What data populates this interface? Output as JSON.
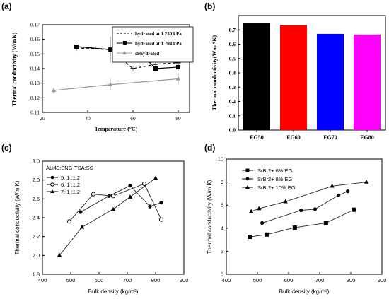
{
  "chart_data": [
    {
      "panel": "(a)",
      "type": "line",
      "ylabel": "Thermal conductivity (W/mK)",
      "xlabel": "Temperature (°C)",
      "xlim": [
        20,
        85
      ],
      "ylim": [
        0.11,
        0.17
      ],
      "x_ticks": [
        "20",
        "40",
        "60",
        "80"
      ],
      "y_ticks": [
        "0.11",
        "0.12",
        "0.13",
        "0.14",
        "0.15",
        "0.16",
        "0.17"
      ],
      "legend_placement": "top-right",
      "series": [
        {
          "name": "hydrated at 1.250 kPa",
          "x": [
            35,
            50,
            60,
            70,
            80
          ],
          "y": [
            0.154,
            0.153,
            0.14,
            0.143,
            0.144
          ],
          "err": [
            0.002,
            0.009,
            0.002,
            0.003,
            0.004
          ],
          "color": "#000000",
          "style": "dashed",
          "marker": "dash"
        },
        {
          "name": "hydrated at 1.704 kPa",
          "x": [
            35,
            50,
            60,
            70,
            80
          ],
          "y": [
            0.155,
            0.153,
            0.156,
            0.14,
            0.141
          ],
          "err": [
            0.001,
            0.007,
            0.004,
            0.002,
            0.003
          ],
          "color": "#000000",
          "style": "solid",
          "marker": "square"
        },
        {
          "name": "dehydrated",
          "x": [
            25,
            50,
            80
          ],
          "y": [
            0.125,
            0.129,
            0.133
          ],
          "err": [
            0.002,
            0.004,
            0.004
          ],
          "color": "#999999",
          "style": "solid",
          "marker": "triangle"
        }
      ]
    },
    {
      "panel": "(b)",
      "type": "bar",
      "ylabel": "Thermal conductivity(W/m*K)",
      "categories": [
        "EG50",
        "EG60",
        "EG70",
        "EG80"
      ],
      "values": [
        0.75,
        0.735,
        0.672,
        0.668
      ],
      "colors": [
        "#000000",
        "#ff0000",
        "#0000ff",
        "#ff00ff"
      ],
      "ylim": [
        0,
        0.8
      ],
      "y_ticks": [
        "0.0",
        "0.1",
        "0.2",
        "0.3",
        "0.4",
        "0.5",
        "0.6",
        "0.7"
      ]
    },
    {
      "panel": "(c)",
      "type": "line",
      "ylabel": "Thermal conductivity (W/m K)",
      "xlabel": "Bulk density (kg/m³)",
      "xlim": [
        400,
        900
      ],
      "ylim": [
        1.8,
        3.0
      ],
      "x_ticks": [
        "400",
        "500",
        "600",
        "700",
        "800",
        "900"
      ],
      "y_ticks": [
        "1.8",
        "2.0",
        "2.2",
        "2.4",
        "2.6",
        "2.8",
        "3.0"
      ],
      "legend_title": "ALi40:ENG-TSA:SS",
      "legend_placement": "top-left",
      "series": [
        {
          "name": "5: 1 :1.2",
          "x": [
            535,
            635,
            710,
            780,
            820
          ],
          "y": [
            2.46,
            2.63,
            2.74,
            2.52,
            2.56
          ],
          "marker": "circle-filled"
        },
        {
          "name": "6: 1 :1.2",
          "x": [
            495,
            580,
            650,
            760,
            820
          ],
          "y": [
            2.36,
            2.65,
            2.63,
            2.76,
            2.38
          ],
          "marker": "circle-open"
        },
        {
          "name": "7: 1 :1.2",
          "x": [
            460,
            540,
            650,
            710,
            800
          ],
          "y": [
            2.0,
            2.3,
            2.49,
            2.62,
            2.82
          ],
          "marker": "triangle-filled"
        }
      ]
    },
    {
      "panel": "(d)",
      "type": "line",
      "ylabel": "Thermal conductivity (W/m K)",
      "xlabel": "Bulk density (kg/m³)",
      "xlim": [
        400,
        900
      ],
      "ylim": [
        0,
        10
      ],
      "x_ticks": [
        "400",
        "500",
        "600",
        "700",
        "800",
        "900"
      ],
      "y_ticks": [
        "0",
        "2",
        "4",
        "6",
        "8",
        "10"
      ],
      "legend_placement": "top-left",
      "series": [
        {
          "name": "SrBr2+ 6% EG",
          "x": [
            475,
            530,
            620,
            720,
            810
          ],
          "y": [
            3.25,
            3.45,
            4.05,
            4.45,
            5.6
          ],
          "marker": "square"
        },
        {
          "name": "SrBr2+ 8% EG",
          "x": [
            515,
            640,
            685,
            760,
            790
          ],
          "y": [
            4.45,
            5.55,
            5.65,
            6.85,
            7.2
          ],
          "marker": "circle"
        },
        {
          "name": "SrBr2+ 10% EG",
          "x": [
            480,
            505,
            590,
            740,
            850
          ],
          "y": [
            5.45,
            5.7,
            6.3,
            7.65,
            8.0
          ],
          "marker": "triangle"
        }
      ]
    }
  ]
}
